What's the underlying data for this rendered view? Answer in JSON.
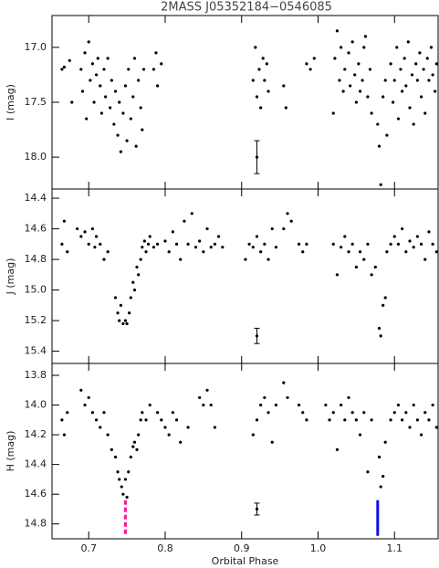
{
  "chart_data": [
    {
      "type": "scatter",
      "title": "2MASS J05352184−0546085",
      "ylabel": "I (mag)",
      "color": "#000000",
      "xlim": [
        0.652,
        1.157
      ],
      "xticks": [
        0.7,
        0.8,
        0.9,
        {
          "value": 1.0,
          "label": "1.0"
        },
        1.1
      ],
      "show_xtick_labels": false,
      "ylim": [
        16.71,
        18.29
      ],
      "y_inverted": true,
      "yticks": [
        {
          "value": 17,
          "label": "17.0"
        },
        17.5,
        {
          "value": 18,
          "label": "18.0"
        }
      ],
      "x": [
        0.665,
        0.668,
        0.675,
        0.678,
        0.69,
        0.692,
        0.695,
        0.697,
        0.7,
        0.702,
        0.705,
        0.707,
        0.71,
        0.712,
        0.715,
        0.717,
        0.72,
        0.722,
        0.725,
        0.728,
        0.73,
        0.733,
        0.735,
        0.738,
        0.74,
        0.742,
        0.745,
        0.748,
        0.75,
        0.752,
        0.755,
        0.758,
        0.76,
        0.762,
        0.765,
        0.768,
        0.77,
        0.772,
        0.785,
        0.788,
        0.79,
        0.795,
        0.915,
        0.918,
        0.92,
        0.923,
        0.925,
        0.928,
        0.93,
        0.933,
        0.935,
        0.955,
        0.958,
        0.985,
        0.99,
        0.995,
        1.02,
        1.022,
        1.025,
        1.028,
        1.03,
        1.033,
        1.035,
        1.04,
        1.042,
        1.045,
        1.048,
        1.05,
        1.053,
        1.055,
        1.058,
        1.06,
        1.062,
        1.065,
        1.068,
        1.07,
        1.078,
        1.08,
        1.082,
        1.085,
        1.088,
        1.09,
        1.095,
        1.098,
        1.1,
        1.103,
        1.105,
        1.108,
        1.11,
        1.113,
        1.115,
        1.118,
        1.12,
        1.123,
        1.125,
        1.128,
        1.13,
        1.133,
        1.135,
        1.138,
        1.14,
        1.143,
        1.145,
        1.148,
        1.15,
        1.153,
        1.155
      ],
      "y": [
        17.2,
        17.18,
        17.12,
        17.5,
        17.2,
        17.4,
        17.05,
        17.65,
        16.95,
        17.3,
        17.15,
        17.5,
        17.25,
        17.1,
        17.35,
        17.6,
        17.2,
        17.45,
        17.1,
        17.55,
        17.3,
        17.7,
        17.4,
        17.8,
        17.5,
        17.95,
        17.6,
        17.35,
        17.85,
        17.2,
        17.65,
        17.45,
        17.1,
        17.9,
        17.3,
        17.55,
        17.75,
        17.2,
        17.2,
        17.05,
        17.35,
        17.15,
        17.3,
        17.0,
        17.45,
        17.2,
        17.55,
        17.1,
        17.3,
        17.15,
        17.4,
        17.35,
        17.55,
        17.15,
        17.2,
        17.1,
        17.6,
        17.1,
        16.85,
        17.3,
        17.0,
        17.4,
        17.2,
        17.05,
        17.35,
        16.95,
        17.25,
        17.5,
        17.15,
        17.4,
        17.3,
        17.0,
        16.9,
        17.45,
        17.2,
        17.6,
        17.7,
        17.9,
        18.25,
        17.45,
        17.3,
        17.8,
        17.15,
        17.5,
        17.3,
        17.0,
        17.65,
        17.2,
        17.4,
        17.1,
        17.35,
        16.95,
        17.55,
        17.25,
        17.7,
        17.15,
        17.3,
        17.05,
        17.45,
        17.2,
        17.6,
        17.1,
        17.3,
        17.0,
        17.25,
        17.4,
        17.15
      ],
      "error_bar": {
        "x": 0.92,
        "y": 18.0,
        "err": 0.15
      }
    },
    {
      "type": "scatter",
      "ylabel": "J (mag)",
      "color": "#000000",
      "xlim": [
        0.652,
        1.157
      ],
      "xticks": [
        0.7,
        0.8,
        0.9,
        {
          "value": 1.0,
          "label": "1.0"
        },
        1.1
      ],
      "show_xtick_labels": false,
      "ylim": [
        14.34,
        15.48
      ],
      "y_inverted": true,
      "yticks": [
        14.4,
        14.6,
        14.8,
        {
          "value": 15,
          "label": "15.0"
        },
        15.2,
        15.4
      ],
      "x": [
        0.665,
        0.668,
        0.672,
        0.685,
        0.69,
        0.695,
        0.7,
        0.705,
        0.708,
        0.71,
        0.715,
        0.72,
        0.725,
        0.735,
        0.738,
        0.74,
        0.742,
        0.745,
        0.748,
        0.75,
        0.753,
        0.755,
        0.758,
        0.76,
        0.763,
        0.765,
        0.768,
        0.77,
        0.773,
        0.775,
        0.778,
        0.78,
        0.785,
        0.79,
        0.8,
        0.805,
        0.81,
        0.815,
        0.82,
        0.825,
        0.83,
        0.835,
        0.84,
        0.845,
        0.85,
        0.855,
        0.86,
        0.865,
        0.87,
        0.875,
        0.905,
        0.91,
        0.915,
        0.92,
        0.925,
        0.93,
        0.935,
        0.94,
        0.945,
        0.955,
        0.96,
        0.965,
        0.975,
        0.98,
        0.985,
        1.02,
        1.025,
        1.03,
        1.035,
        1.04,
        1.045,
        1.05,
        1.055,
        1.06,
        1.065,
        1.07,
        1.075,
        1.08,
        1.082,
        1.085,
        1.088,
        1.09,
        1.095,
        1.1,
        1.105,
        1.11,
        1.115,
        1.12,
        1.125,
        1.13,
        1.135,
        1.14,
        1.145,
        1.15,
        1.155
      ],
      "y": [
        14.7,
        14.55,
        14.75,
        14.6,
        14.65,
        14.62,
        14.7,
        14.6,
        14.72,
        14.65,
        14.7,
        14.8,
        14.75,
        15.05,
        15.15,
        15.2,
        15.1,
        15.22,
        15.2,
        15.22,
        15.15,
        15.05,
        14.95,
        15.0,
        14.85,
        14.9,
        14.8,
        14.72,
        14.68,
        14.75,
        14.7,
        14.65,
        14.72,
        14.7,
        14.68,
        14.75,
        14.62,
        14.7,
        14.8,
        14.55,
        14.7,
        14.5,
        14.72,
        14.68,
        14.75,
        14.6,
        14.72,
        14.7,
        14.65,
        14.72,
        14.8,
        14.7,
        14.72,
        14.65,
        14.75,
        14.7,
        14.8,
        14.6,
        14.72,
        14.6,
        14.5,
        14.55,
        14.7,
        14.75,
        14.7,
        14.7,
        14.9,
        14.72,
        14.65,
        14.75,
        14.7,
        14.85,
        14.75,
        14.8,
        14.7,
        14.9,
        14.85,
        15.25,
        15.3,
        15.1,
        15.05,
        14.75,
        14.7,
        14.65,
        14.7,
        14.6,
        14.75,
        14.68,
        14.72,
        14.65,
        14.7,
        14.8,
        14.62,
        14.7,
        14.75
      ],
      "error_bar": {
        "x": 0.92,
        "y": 15.3,
        "err": 0.05
      }
    },
    {
      "type": "scatter",
      "ylabel": "H (mag)",
      "xlabel": "Orbital Phase",
      "color": "#000000",
      "xlim": [
        0.652,
        1.157
      ],
      "xticks": [
        0.7,
        0.8,
        0.9,
        {
          "value": 1.0,
          "label": "1.0"
        },
        1.1
      ],
      "show_xtick_labels": true,
      "ylim": [
        13.72,
        14.9
      ],
      "y_inverted": true,
      "yticks": [
        13.8,
        {
          "value": 14,
          "label": "14.0"
        },
        14.2,
        14.4,
        14.6,
        14.8
      ],
      "x": [
        0.665,
        0.668,
        0.672,
        0.69,
        0.695,
        0.7,
        0.705,
        0.71,
        0.715,
        0.72,
        0.725,
        0.73,
        0.735,
        0.738,
        0.74,
        0.743,
        0.745,
        0.748,
        0.75,
        0.752,
        0.755,
        0.758,
        0.76,
        0.763,
        0.765,
        0.768,
        0.77,
        0.775,
        0.78,
        0.79,
        0.795,
        0.8,
        0.805,
        0.81,
        0.815,
        0.82,
        0.83,
        0.845,
        0.85,
        0.855,
        0.86,
        0.865,
        0.915,
        0.92,
        0.925,
        0.93,
        0.935,
        0.94,
        0.945,
        0.955,
        0.96,
        0.975,
        0.98,
        0.985,
        1.01,
        1.015,
        1.02,
        1.025,
        1.03,
        1.035,
        1.04,
        1.045,
        1.05,
        1.055,
        1.06,
        1.065,
        1.07,
        1.08,
        1.082,
        1.085,
        1.088,
        1.095,
        1.1,
        1.105,
        1.11,
        1.115,
        1.12,
        1.125,
        1.13,
        1.135,
        1.14,
        1.145,
        1.15,
        1.155
      ],
      "y": [
        14.1,
        14.2,
        14.05,
        13.9,
        14.0,
        13.95,
        14.05,
        14.1,
        14.15,
        14.05,
        14.2,
        14.3,
        14.35,
        14.45,
        14.5,
        14.55,
        14.6,
        14.5,
        14.62,
        14.45,
        14.35,
        14.28,
        14.25,
        14.3,
        14.2,
        14.1,
        14.05,
        14.1,
        14.0,
        14.05,
        14.1,
        14.15,
        14.2,
        14.05,
        14.1,
        14.25,
        14.15,
        13.95,
        14.0,
        13.9,
        14.0,
        14.15,
        14.2,
        14.1,
        14.0,
        13.95,
        14.05,
        14.25,
        14.0,
        13.85,
        13.95,
        14.0,
        14.05,
        14.1,
        14.0,
        14.1,
        14.05,
        14.3,
        14.0,
        14.1,
        13.95,
        14.05,
        14.1,
        14.2,
        14.05,
        14.45,
        14.1,
        14.35,
        14.55,
        14.48,
        14.25,
        14.1,
        14.05,
        14.0,
        14.1,
        14.05,
        14.15,
        14.0,
        14.1,
        14.2,
        14.05,
        14.1,
        14.0,
        14.15
      ],
      "error_bar": {
        "x": 0.92,
        "y": 14.7,
        "err": 0.04
      },
      "markers": [
        {
          "x": 0.748,
          "y": [
            14.64,
            14.88
          ],
          "color": "#ff1493",
          "style": "dashed"
        },
        {
          "x": 1.078,
          "y": [
            14.64,
            14.88
          ],
          "color": "#1010e0",
          "style": "solid"
        }
      ]
    }
  ]
}
